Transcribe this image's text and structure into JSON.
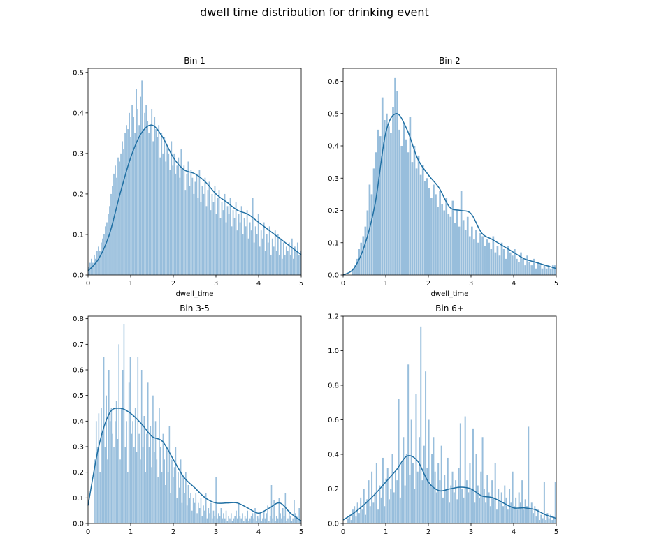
{
  "figure": {
    "suptitle": "dwell time distribution for drinking event",
    "hist_color": "#7eaed3",
    "kde_color": "#1f6fa3"
  },
  "chart_data": [
    {
      "type": "histogram",
      "title": "Bin 1",
      "xlabel": "dwell_time",
      "ylabel": "",
      "xlim": [
        0,
        5
      ],
      "ylim": [
        0,
        0.51
      ],
      "xticks": [
        "0",
        "1",
        "2",
        "3",
        "4",
        "5"
      ],
      "yticks": [
        "0.0",
        "0.1",
        "0.2",
        "0.3",
        "0.4",
        "0.5"
      ],
      "bin_range": [
        0,
        5
      ],
      "bar_heights": [
        0.02,
        0.03,
        0.04,
        0.03,
        0.05,
        0.04,
        0.06,
        0.07,
        0.06,
        0.08,
        0.09,
        0.1,
        0.12,
        0.13,
        0.15,
        0.17,
        0.2,
        0.22,
        0.25,
        0.27,
        0.24,
        0.29,
        0.28,
        0.3,
        0.33,
        0.31,
        0.35,
        0.37,
        0.36,
        0.4,
        0.34,
        0.42,
        0.39,
        0.35,
        0.46,
        0.41,
        0.37,
        0.44,
        0.48,
        0.36,
        0.4,
        0.42,
        0.38,
        0.35,
        0.37,
        0.41,
        0.33,
        0.39,
        0.36,
        0.34,
        0.37,
        0.29,
        0.35,
        0.3,
        0.34,
        0.28,
        0.32,
        0.3,
        0.26,
        0.33,
        0.27,
        0.3,
        0.25,
        0.27,
        0.29,
        0.24,
        0.31,
        0.26,
        0.27,
        0.21,
        0.25,
        0.28,
        0.22,
        0.26,
        0.24,
        0.2,
        0.23,
        0.25,
        0.19,
        0.26,
        0.18,
        0.22,
        0.2,
        0.24,
        0.17,
        0.21,
        0.23,
        0.16,
        0.2,
        0.18,
        0.22,
        0.15,
        0.19,
        0.21,
        0.14,
        0.18,
        0.16,
        0.2,
        0.13,
        0.17,
        0.15,
        0.19,
        0.12,
        0.16,
        0.14,
        0.18,
        0.11,
        0.15,
        0.13,
        0.17,
        0.1,
        0.14,
        0.12,
        0.16,
        0.09,
        0.13,
        0.11,
        0.19,
        0.08,
        0.12,
        0.1,
        0.15,
        0.07,
        0.11,
        0.09,
        0.13,
        0.06,
        0.1,
        0.08,
        0.12,
        0.05,
        0.09,
        0.07,
        0.11,
        0.06,
        0.1,
        0.05,
        0.09,
        0.04,
        0.08,
        0.05,
        0.07,
        0.06,
        0.08,
        0.05,
        0.09,
        0.04,
        0.07,
        0.06,
        0.08,
        0.05,
        0.06
      ],
      "kde": {
        "x": [
          0,
          0.25,
          0.5,
          0.75,
          1.0,
          1.25,
          1.5,
          1.75,
          2.0,
          2.25,
          2.5,
          2.75,
          3.0,
          3.25,
          3.5,
          3.75,
          4.0,
          4.25,
          4.5,
          4.75,
          5.0
        ],
        "y": [
          0.01,
          0.04,
          0.1,
          0.2,
          0.29,
          0.35,
          0.37,
          0.34,
          0.29,
          0.26,
          0.25,
          0.23,
          0.2,
          0.18,
          0.16,
          0.15,
          0.13,
          0.11,
          0.09,
          0.07,
          0.05
        ]
      }
    },
    {
      "type": "histogram",
      "title": "Bin 2",
      "xlabel": "dwell_time",
      "ylabel": "",
      "xlim": [
        0,
        5
      ],
      "ylim": [
        0,
        0.64
      ],
      "xticks": [
        "0",
        "1",
        "2",
        "3",
        "4",
        "5"
      ],
      "yticks": [
        "0.0",
        "0.1",
        "0.2",
        "0.3",
        "0.4",
        "0.5",
        "0.6"
      ],
      "bin_range": [
        0.2,
        5
      ],
      "bar_heights": [
        0.02,
        0.03,
        0.05,
        0.08,
        0.1,
        0.12,
        0.15,
        0.2,
        0.28,
        0.25,
        0.33,
        0.38,
        0.45,
        0.43,
        0.55,
        0.48,
        0.5,
        0.46,
        0.44,
        0.52,
        0.61,
        0.57,
        0.45,
        0.4,
        0.47,
        0.42,
        0.38,
        0.49,
        0.35,
        0.4,
        0.33,
        0.37,
        0.31,
        0.34,
        0.29,
        0.3,
        0.27,
        0.24,
        0.28,
        0.25,
        0.21,
        0.26,
        0.22,
        0.2,
        0.24,
        0.19,
        0.18,
        0.23,
        0.16,
        0.2,
        0.15,
        0.26,
        0.17,
        0.14,
        0.18,
        0.12,
        0.15,
        0.11,
        0.14,
        0.1,
        0.13,
        0.12,
        0.09,
        0.11,
        0.1,
        0.08,
        0.12,
        0.07,
        0.09,
        0.06,
        0.1,
        0.08,
        0.05,
        0.09,
        0.07,
        0.06,
        0.08,
        0.05,
        0.04,
        0.07,
        0.05,
        0.03,
        0.06,
        0.04,
        0.03,
        0.05,
        0.02,
        0.04,
        0.03,
        0.02,
        0.03,
        0.02,
        0.03,
        0.02,
        0.03,
        0.03
      ],
      "kde": {
        "x": [
          0,
          0.25,
          0.5,
          0.75,
          1.0,
          1.25,
          1.5,
          1.75,
          2.0,
          2.25,
          2.5,
          2.75,
          3.0,
          3.25,
          3.5,
          3.75,
          4.0,
          4.25,
          4.5,
          4.75,
          5.0
        ],
        "y": [
          0.0,
          0.02,
          0.09,
          0.22,
          0.44,
          0.5,
          0.45,
          0.36,
          0.31,
          0.27,
          0.21,
          0.2,
          0.19,
          0.13,
          0.11,
          0.09,
          0.07,
          0.05,
          0.04,
          0.03,
          0.02
        ]
      }
    },
    {
      "type": "histogram",
      "title": "Bin 3-5",
      "xlabel": "",
      "ylabel": "",
      "xlim": [
        0,
        5
      ],
      "ylim": [
        0,
        0.81
      ],
      "xticks": [
        "0",
        "1",
        "2",
        "3",
        "4",
        "5"
      ],
      "yticks": [
        "0.0",
        "0.1",
        "0.2",
        "0.3",
        "0.4",
        "0.5",
        "0.6",
        "0.7",
        "0.8"
      ],
      "bin_range": [
        0.15,
        5
      ],
      "bar_heights": [
        0.25,
        0.4,
        0.3,
        0.43,
        0.2,
        0.45,
        0.35,
        0.65,
        0.3,
        0.5,
        0.25,
        0.6,
        0.4,
        0.45,
        0.35,
        0.3,
        0.4,
        0.48,
        0.33,
        0.7,
        0.25,
        0.45,
        0.6,
        0.78,
        0.3,
        0.4,
        0.2,
        0.55,
        0.65,
        0.35,
        0.4,
        0.3,
        0.45,
        0.28,
        0.65,
        0.35,
        0.25,
        0.6,
        0.3,
        0.42,
        0.2,
        0.35,
        0.55,
        0.3,
        0.38,
        0.22,
        0.5,
        0.28,
        0.4,
        0.25,
        0.18,
        0.45,
        0.3,
        0.2,
        0.35,
        0.25,
        0.15,
        0.3,
        0.2,
        0.38,
        0.12,
        0.25,
        0.18,
        0.22,
        0.3,
        0.1,
        0.2,
        0.14,
        0.25,
        0.08,
        0.18,
        0.12,
        0.2,
        0.07,
        0.15,
        0.1,
        0.12,
        0.05,
        0.1,
        0.08,
        0.12,
        0.04,
        0.08,
        0.06,
        0.1,
        0.03,
        0.07,
        0.05,
        0.12,
        0.02,
        0.06,
        0.04,
        0.08,
        0.02,
        0.05,
        0.03,
        0.18,
        0.02,
        0.04,
        0.03,
        0.06,
        0.02,
        0.04,
        0.02,
        0.05,
        0.01,
        0.03,
        0.02,
        0.04,
        0.01,
        0.02,
        0.03,
        0.05,
        0.02,
        0.08,
        0.03,
        0.02,
        0.04,
        0.01,
        0.03,
        0.02,
        0.05,
        0.01,
        0.02,
        0.03,
        0.04,
        0.02,
        0.06,
        0.01,
        0.03,
        0.02,
        0.04,
        0.01,
        0.02,
        0.05,
        0.02,
        0.04,
        0.07,
        0.01,
        0.03,
        0.15,
        0.02,
        0.09,
        0.01,
        0.03,
        0.02,
        0.1,
        0.04,
        0.02,
        0.06,
        0.03,
        0.12,
        0.01,
        0.02,
        0.05,
        0.03,
        0.01,
        0.02,
        0.09,
        0.04,
        0.03,
        0.02,
        0.06,
        0.01
      ],
      "kde": {
        "x": [
          0,
          0.25,
          0.5,
          0.75,
          1.0,
          1.25,
          1.5,
          1.75,
          2.0,
          2.25,
          2.5,
          2.75,
          3.0,
          3.25,
          3.5,
          3.75,
          4.0,
          4.25,
          4.5,
          4.75,
          5.0
        ],
        "y": [
          0.07,
          0.3,
          0.43,
          0.45,
          0.43,
          0.39,
          0.34,
          0.32,
          0.25,
          0.18,
          0.14,
          0.1,
          0.08,
          0.08,
          0.08,
          0.06,
          0.04,
          0.06,
          0.08,
          0.04,
          0.01
        ]
      }
    },
    {
      "type": "histogram",
      "title": "Bin 6+",
      "xlabel": "",
      "ylabel": "",
      "xlim": [
        0,
        5
      ],
      "ylim": [
        0,
        1.2
      ],
      "xticks": [
        "0",
        "1",
        "2",
        "3",
        "4",
        "5"
      ],
      "yticks": [
        "0.0",
        "0.2",
        "0.4",
        "0.6",
        "0.8",
        "1.0",
        "1.2"
      ],
      "bin_range": [
        0.1,
        5
      ],
      "bar_heights": [
        0.03,
        0.05,
        0.02,
        0.08,
        0.1,
        0.04,
        0.12,
        0.06,
        0.15,
        0.08,
        0.2,
        0.05,
        0.14,
        0.25,
        0.1,
        0.3,
        0.12,
        0.18,
        0.35,
        0.08,
        0.22,
        0.15,
        0.38,
        0.1,
        0.26,
        0.32,
        0.14,
        0.2,
        0.4,
        0.18,
        0.3,
        0.25,
        0.72,
        0.15,
        0.35,
        0.5,
        0.22,
        0.4,
        0.92,
        0.28,
        0.6,
        0.35,
        0.2,
        0.75,
        0.3,
        0.5,
        1.14,
        0.25,
        0.45,
        0.88,
        0.32,
        0.6,
        0.22,
        0.4,
        0.5,
        0.3,
        0.18,
        0.35,
        0.25,
        0.45,
        0.15,
        0.28,
        0.2,
        0.38,
        0.12,
        0.22,
        0.3,
        0.18,
        0.25,
        0.14,
        0.32,
        0.58,
        0.2,
        0.15,
        0.62,
        0.25,
        0.18,
        0.35,
        0.2,
        0.55,
        0.12,
        0.4,
        0.22,
        0.15,
        0.3,
        0.5,
        0.2,
        0.12,
        0.28,
        0.18,
        0.1,
        0.25,
        0.15,
        0.35,
        0.08,
        0.2,
        0.12,
        0.18,
        0.1,
        0.22,
        0.15,
        0.08,
        0.2,
        0.12,
        0.3,
        0.1,
        0.15,
        0.08,
        0.18,
        0.12,
        0.25,
        0.08,
        0.14,
        0.1,
        0.56,
        0.08,
        0.12,
        0.06,
        0.1,
        0.04,
        0.08,
        0.02,
        0.05,
        0.03,
        0.24,
        0.02,
        0.06,
        0.03,
        0.05,
        0.02,
        0.04,
        0.24
      ],
      "kde": {
        "x": [
          0,
          0.25,
          0.5,
          0.75,
          1.0,
          1.25,
          1.5,
          1.75,
          2.0,
          2.25,
          2.5,
          2.75,
          3.0,
          3.25,
          3.5,
          3.75,
          4.0,
          4.25,
          4.5,
          4.75,
          5.0
        ],
        "y": [
          0.02,
          0.06,
          0.11,
          0.17,
          0.24,
          0.31,
          0.39,
          0.36,
          0.24,
          0.19,
          0.2,
          0.21,
          0.2,
          0.16,
          0.15,
          0.12,
          0.09,
          0.09,
          0.08,
          0.05,
          0.03
        ]
      }
    }
  ]
}
